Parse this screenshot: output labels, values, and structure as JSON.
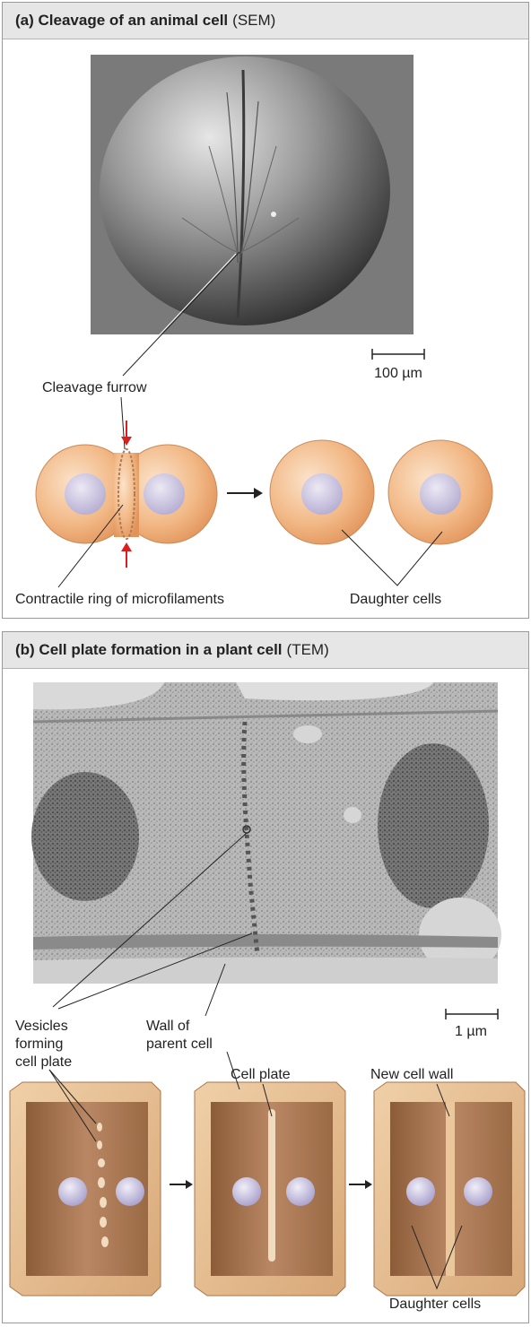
{
  "panel_a": {
    "title_bold": "(a) Cleavage of an animal cell",
    "title_sub": "(SEM)",
    "scale_label": "100 µm",
    "labels": {
      "cleavage_furrow": "Cleavage furrow",
      "contractile_ring": "Contractile ring of microfilaments",
      "daughter_cells": "Daughter cells"
    }
  },
  "panel_b": {
    "title_bold": "(b) Cell plate formation in a plant cell",
    "title_sub": "(TEM)",
    "scale_label": "1 µm",
    "labels": {
      "vesicles_1": "Vesicles",
      "vesicles_2": "forming",
      "vesicles_3": "cell plate",
      "wall_1": "Wall of",
      "wall_2": "parent cell",
      "cell_plate": "Cell plate",
      "new_cell_wall": "New cell wall",
      "daughter_cells": "Daughter cells"
    }
  },
  "colors": {
    "cell_orange": "#f0b784",
    "nucleus": "#c9c3de",
    "plant_wall": "#e8c39a",
    "plant_interior": "#b07d56",
    "arrow_red": "#d82020"
  }
}
